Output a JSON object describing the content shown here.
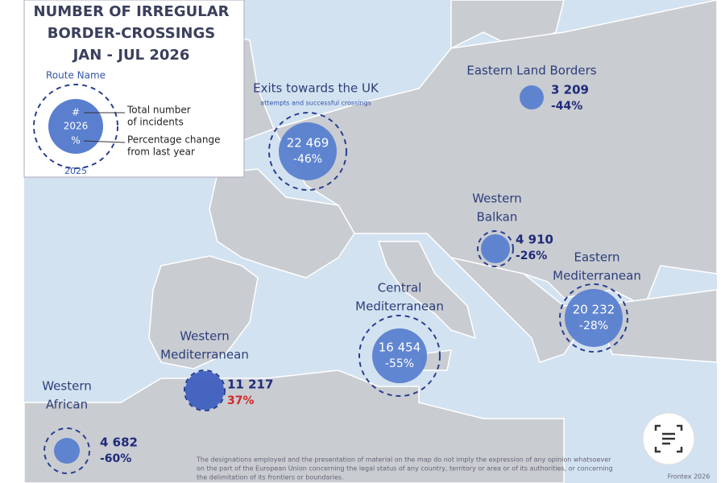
{
  "legend": {
    "title": [
      "NUMBER OF IRREGULAR",
      "BORDER-CROSSINGS",
      "JAN - JUL 2026"
    ],
    "route_name": "Route Name",
    "count_symbol": "#",
    "year_current": "2026",
    "percent_symbol": "%",
    "total_label": [
      "Total number",
      "of incidents"
    ],
    "change_label": [
      "Percentage change",
      "from last year"
    ],
    "year_previous": "2025"
  },
  "routes": [
    {
      "name": [
        "Exits towards the UK"
      ],
      "subtitle": "attempts and successful crossings",
      "count": "22 469",
      "change": "-46%"
    },
    {
      "name": [
        "Eastern Land Borders"
      ],
      "count": "3 209",
      "change": "-44%"
    },
    {
      "name": [
        "Western",
        "Balkan"
      ],
      "count": "4 910",
      "change": "-26%"
    },
    {
      "name": [
        "Eastern",
        "Mediterranean"
      ],
      "count": "20 232",
      "change": "-28%"
    },
    {
      "name": [
        "Central",
        "Mediterranean"
      ],
      "count": "16 454",
      "change": "-55%"
    },
    {
      "name": [
        "Western",
        "Mediterranean"
      ],
      "count": "11 217",
      "change": "37%"
    },
    {
      "name": [
        "Western",
        "African"
      ],
      "count": "4 682",
      "change": "-60%"
    }
  ],
  "disclaimer": [
    "The designations employed and the presentation of material on the map do not imply the expression of any opinion whatsoever",
    "on the part of the European Union concerning the legal status of any country, territory or area or of its authorities, or concerning",
    "the delimitation of its frontiers or boundaries."
  ],
  "source": "Frontex 2026"
}
